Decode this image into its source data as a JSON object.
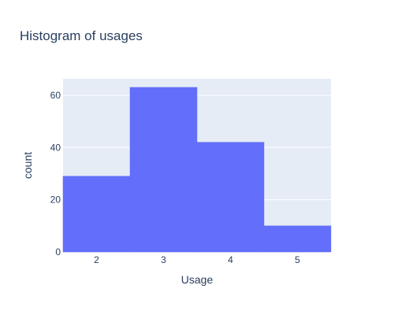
{
  "chart_data": {
    "type": "bar",
    "title": "Histogram of usages",
    "xlabel": "Usage",
    "ylabel": "count",
    "categories": [
      "2",
      "3",
      "4",
      "5"
    ],
    "values": [
      29,
      63,
      42,
      10
    ],
    "x": [
      2,
      3,
      4,
      5
    ],
    "bin_width": 1,
    "xlim": [
      1.5,
      5.5
    ],
    "ylim": [
      0,
      66.3
    ],
    "yticks": [
      0,
      20,
      40,
      60
    ],
    "xticks": [
      2,
      3,
      4,
      5
    ],
    "grid": true,
    "legend": "none",
    "colors": {
      "bar": "#636efa",
      "plot_background": "#e5ecf6",
      "grid": "#ffffff",
      "text": "#2a3f5f"
    }
  }
}
